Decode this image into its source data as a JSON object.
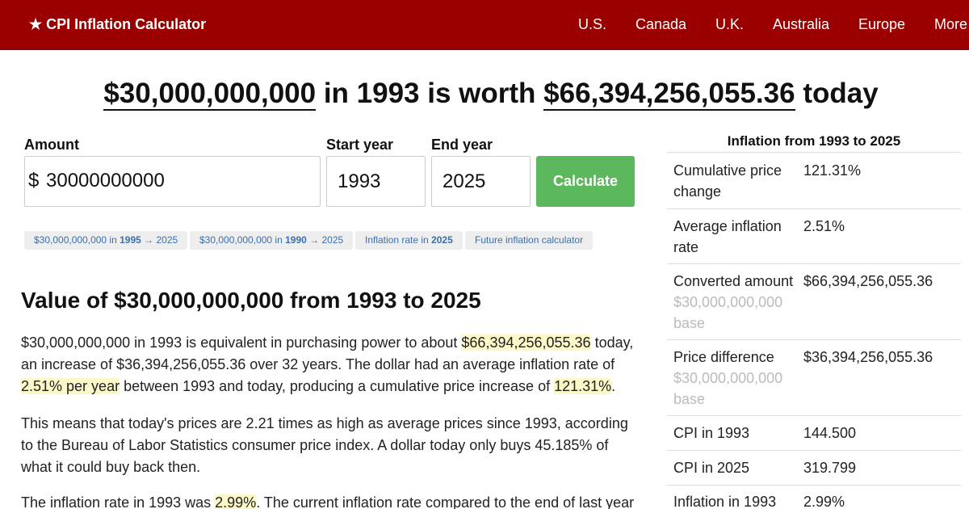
{
  "header": {
    "brand": "CPI Inflation Calculator",
    "brand_icon": "star-icon",
    "nav": [
      "U.S.",
      "Canada",
      "U.K.",
      "Australia",
      "Europe",
      "More"
    ],
    "bg_color": "#9a0000"
  },
  "headline": {
    "amount": "$30,000,000,000",
    "mid": "in 1993 is worth",
    "worth": "$66,394,256,055.36",
    "end": "today"
  },
  "form": {
    "amount_label": "Amount",
    "currency_symbol": "$",
    "amount_value": "30000000000",
    "start_label": "Start year",
    "start_value": "1993",
    "end_label": "End year",
    "end_value": "2025",
    "button_label": "Calculate",
    "button_color": "#5cb85c"
  },
  "chips": [
    {
      "pre": "$30,000,000,000 in ",
      "bold": "1995",
      "post": " → 2025"
    },
    {
      "pre": "$30,000,000,000 in ",
      "bold": "1990",
      "post": " → 2025"
    },
    {
      "pre": "Inflation rate in ",
      "bold": "2025",
      "post": ""
    },
    {
      "pre": "Future inflation calculator",
      "bold": "",
      "post": ""
    }
  ],
  "article": {
    "title": "Value of $30,000,000,000 from 1993 to 2025",
    "p1": {
      "a": "$30,000,000,000 in 1993 is equivalent in purchasing power to about ",
      "h1": "$66,394,256,055.36",
      "b": " today, an increase of $36,394,256,055.36 over 32 years. The dollar had an average inflation rate of ",
      "h2": "2.51% per year",
      "c": " between 1993 and today, producing a cumulative price increase of ",
      "h3": "121.31%",
      "d": "."
    },
    "p2": "This means that today's prices are 2.21 times as high as average prices since 1993, according to the Bureau of Labor Statistics consumer price index. A dollar today only buys 45.185% of what it could buy back then.",
    "p3": {
      "a": "The inflation rate in 1993 was ",
      "h1": "2.99%",
      "b": ". The current inflation rate compared to the end of last year"
    }
  },
  "sidebar": {
    "title": "Inflation from 1993 to 2025",
    "rows": [
      {
        "k": "Cumulative price change",
        "v": "121.31%"
      },
      {
        "k": "Average inflation rate",
        "v": "2.51%"
      },
      {
        "k": "Converted amount",
        "sub": "$30,000,000,000 base",
        "v": "$66,394,256,055.36"
      },
      {
        "k": "Price difference",
        "sub": "$30,000,000,000 base",
        "v": "$36,394,256,055.36"
      },
      {
        "k": "CPI in 1993",
        "v": "144.500"
      },
      {
        "k": "CPI in 2025",
        "v": "319.799"
      },
      {
        "k": "Inflation in 1993",
        "v": "2.99%"
      }
    ]
  }
}
